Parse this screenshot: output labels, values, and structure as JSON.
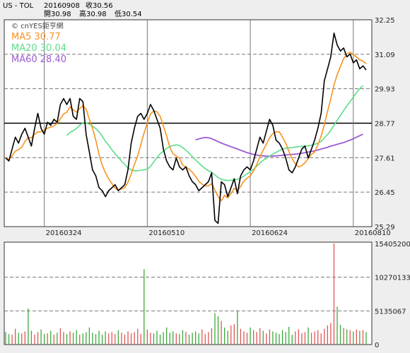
{
  "header": {
    "symbol": "US - TOL",
    "date": "20160908",
    "close_label": "收30.56",
    "open_label": "開30.98",
    "high_label": "高30.98",
    "low_label": "低30.54"
  },
  "watermark": "© cnYES鉅亨網",
  "colors": {
    "price": "#000000",
    "ma5": "#f7931e",
    "ma20": "#5ddc8a",
    "ma60": "#9b5bd3",
    "vol_up": "#e05555",
    "vol_down": "#3aaa3a",
    "vol_flat": "#000000",
    "grid": "#777777",
    "background": "#ffffff"
  },
  "chart_data": [
    {
      "type": "line",
      "title": "US - TOL",
      "legend": [
        {
          "name": "MA5",
          "value": "30.77"
        },
        {
          "name": "MA20",
          "value": "30.04"
        },
        {
          "name": "MA60",
          "value": "28.40"
        }
      ],
      "yticks": [
        "32.25",
        "31.09",
        "29.93",
        "28.77",
        "27.61",
        "26.45",
        "25.29"
      ],
      "ylim": [
        25.29,
        32.25
      ],
      "xticks": [
        {
          "label": "20160324",
          "index": 12
        },
        {
          "label": "20160510",
          "index": 44
        },
        {
          "label": "20160624",
          "index": 76
        },
        {
          "label": "20160810",
          "index": 108
        }
      ],
      "reference_line": 28.77,
      "series": [
        {
          "name": "Price",
          "values": [
            27.6,
            27.5,
            27.9,
            28.3,
            28.1,
            28.4,
            28.6,
            28.3,
            28.0,
            28.6,
            29.1,
            28.6,
            28.4,
            28.8,
            28.7,
            28.9,
            28.8,
            29.4,
            29.6,
            29.4,
            29.6,
            29.0,
            28.9,
            29.6,
            29.5,
            28.4,
            27.8,
            27.2,
            27.0,
            26.6,
            26.5,
            26.3,
            26.5,
            26.6,
            26.7,
            26.5,
            26.6,
            26.7,
            27.2,
            28.1,
            28.6,
            29.0,
            29.1,
            28.9,
            29.1,
            29.4,
            29.2,
            28.9,
            28.6,
            27.9,
            27.5,
            27.3,
            27.2,
            27.6,
            27.3,
            27.2,
            27.3,
            27.0,
            26.8,
            26.7,
            26.5,
            26.6,
            26.7,
            26.8,
            27.1,
            25.5,
            25.4,
            26.8,
            26.7,
            26.3,
            26.6,
            26.9,
            26.4,
            27.0,
            27.2,
            27.3,
            27.2,
            27.5,
            27.9,
            28.3,
            28.1,
            28.5,
            28.9,
            28.7,
            28.2,
            28.1,
            27.9,
            27.6,
            27.2,
            27.1,
            27.3,
            27.6,
            27.9,
            28.0,
            27.6,
            27.9,
            28.2,
            28.6,
            29.1,
            30.2,
            30.6,
            31.0,
            31.8,
            31.4,
            31.2,
            31.3,
            31.0,
            31.1,
            30.8,
            30.9,
            30.6,
            30.7,
            30.56
          ]
        },
        {
          "name": "MA5",
          "values": [
            27.6,
            27.55,
            27.67,
            27.83,
            27.88,
            27.96,
            28.16,
            28.28,
            28.28,
            28.4,
            28.48,
            28.48,
            28.54,
            28.6,
            28.64,
            28.68,
            28.76,
            28.92,
            29.08,
            29.14,
            29.32,
            29.22,
            29.14,
            29.26,
            29.36,
            29.24,
            28.9,
            28.6,
            28.2,
            27.72,
            27.36,
            27.1,
            26.9,
            26.74,
            26.58,
            26.52,
            26.56,
            26.6,
            26.78,
            27.06,
            27.38,
            27.66,
            28.06,
            28.44,
            28.78,
            29.08,
            29.18,
            29.16,
            29.0,
            28.68,
            28.34,
            27.96,
            27.74,
            27.66,
            27.6,
            27.36,
            27.3,
            27.22,
            27.12,
            26.98,
            26.82,
            26.72,
            26.66,
            26.66,
            26.74,
            26.52,
            26.3,
            26.16,
            26.34,
            26.26,
            26.4,
            26.58,
            26.5,
            26.64,
            26.82,
            26.92,
            27.0,
            27.16,
            27.38,
            27.64,
            27.86,
            28.06,
            28.28,
            28.42,
            28.48,
            28.48,
            28.3,
            28.1,
            27.82,
            27.58,
            27.4,
            27.3,
            27.34,
            27.44,
            27.58,
            27.72,
            27.8,
            28.04,
            28.34,
            28.72,
            29.18,
            29.58,
            30.06,
            30.4,
            30.68,
            30.94,
            31.1,
            31.16,
            31.08,
            31.0,
            30.9,
            30.86,
            30.77
          ]
        },
        {
          "name": "MA20",
          "values": [
            null,
            null,
            null,
            null,
            null,
            null,
            null,
            null,
            null,
            null,
            null,
            null,
            null,
            null,
            null,
            null,
            null,
            null,
            null,
            28.36,
            28.46,
            28.52,
            28.59,
            28.7,
            28.79,
            28.78,
            28.74,
            28.67,
            28.59,
            28.48,
            28.33,
            28.16,
            28.03,
            27.88,
            27.74,
            27.62,
            27.5,
            27.38,
            27.27,
            27.2,
            27.17,
            27.17,
            27.19,
            27.2,
            27.22,
            27.32,
            27.46,
            27.61,
            27.74,
            27.83,
            27.92,
            27.98,
            28.02,
            28.04,
            28.02,
            27.95,
            27.86,
            27.76,
            27.64,
            27.53,
            27.43,
            27.33,
            27.24,
            27.17,
            27.12,
            27.03,
            26.94,
            26.88,
            26.86,
            26.84,
            26.85,
            26.87,
            26.88,
            26.93,
            26.99,
            27.07,
            27.14,
            27.22,
            27.32,
            27.43,
            27.52,
            27.59,
            27.66,
            27.73,
            27.79,
            27.85,
            27.9,
            27.93,
            27.94,
            27.95,
            27.97,
            27.98,
            27.99,
            28.0,
            28.01,
            28.03,
            28.06,
            28.1,
            28.16,
            28.27,
            28.39,
            28.53,
            28.7,
            28.87,
            29.03,
            29.2,
            29.35,
            29.5,
            29.65,
            29.8,
            29.93,
            30.04
          ]
        },
        {
          "name": "MA60",
          "values": [
            null,
            null,
            null,
            null,
            null,
            null,
            null,
            null,
            null,
            null,
            null,
            null,
            null,
            null,
            null,
            null,
            null,
            null,
            null,
            null,
            null,
            null,
            null,
            null,
            null,
            null,
            null,
            null,
            null,
            null,
            null,
            null,
            null,
            null,
            null,
            null,
            null,
            null,
            null,
            null,
            null,
            null,
            null,
            null,
            null,
            null,
            null,
            null,
            null,
            null,
            null,
            null,
            null,
            null,
            null,
            null,
            null,
            null,
            null,
            28.21,
            28.24,
            28.27,
            28.29,
            28.28,
            28.25,
            28.2,
            28.15,
            28.1,
            28.06,
            28.02,
            27.98,
            27.94,
            27.9,
            27.86,
            27.82,
            27.78,
            27.75,
            27.72,
            27.7,
            27.68,
            27.67,
            27.66,
            27.66,
            27.66,
            27.67,
            27.68,
            27.69,
            27.7,
            27.71,
            27.72,
            27.73,
            27.74,
            27.76,
            27.78,
            27.8,
            27.82,
            27.84,
            27.87,
            27.9,
            27.93,
            27.96,
            28.0,
            28.03,
            28.06,
            28.09,
            28.12,
            28.16,
            28.2,
            28.25,
            28.3,
            28.35,
            28.4
          ]
        }
      ]
    },
    {
      "type": "bar",
      "title": "",
      "yticks": [
        "15405200",
        "10270133",
        "5135067",
        "0"
      ],
      "ylim": [
        0,
        15405200
      ],
      "series": [
        {
          "name": "Volume",
          "values": [
            1900000,
            1600000,
            1500000,
            2400000,
            1800000,
            1700000,
            2000000,
            5500000,
            2100000,
            1500000,
            1900000,
            2300000,
            1600000,
            1700000,
            2100000,
            1500000,
            1800000,
            2500000,
            1900000,
            1600000,
            2000000,
            1800000,
            2200000,
            1500000,
            1700000,
            1900000,
            2600000,
            1800000,
            1600000,
            2100000,
            1500000,
            2000000,
            1700000,
            1900000,
            1600000,
            2200000,
            1800000,
            1500000,
            2000000,
            1700000,
            1900000,
            2400000,
            1600000,
            11500000,
            2300000,
            1800000,
            1700000,
            2100000,
            1500000,
            1900000,
            2600000,
            1800000,
            2000000,
            1700000,
            1600000,
            2200000,
            1900000,
            1500000,
            1800000,
            2000000,
            1700000,
            2300000,
            1600000,
            1900000,
            2500000,
            4800000,
            4300000,
            3600000,
            2600000,
            2100000,
            2900000,
            3100000,
            5200000,
            2400000,
            2000000,
            1800000,
            2600000,
            2200000,
            1900000,
            2500000,
            2100000,
            1700000,
            2300000,
            2000000,
            1800000,
            1600000,
            2200000,
            1900000,
            2700000,
            1500000,
            2000000,
            2300000,
            1700000,
            1900000,
            2600000,
            1800000,
            2000000,
            2200000,
            1700000,
            2400000,
            2900000,
            3300000,
            15405200,
            5800000,
            3000000,
            2500000,
            2300000,
            2200000,
            2000000,
            2300000,
            2100000,
            2200000,
            1900000
          ]
        },
        {
          "name": "Direction",
          "values": [
            -1,
            -1,
            1,
            1,
            -1,
            1,
            1,
            -1,
            -1,
            1,
            1,
            -1,
            -1,
            1,
            -1,
            1,
            -1,
            1,
            1,
            -1,
            1,
            -1,
            -1,
            1,
            -1,
            -1,
            -1,
            -1,
            -1,
            -1,
            -1,
            -1,
            1,
            1,
            1,
            -1,
            1,
            1,
            1,
            1,
            1,
            1,
            1,
            -1,
            1,
            1,
            -1,
            -1,
            -1,
            -1,
            -1,
            -1,
            -1,
            1,
            -1,
            -1,
            1,
            -1,
            -1,
            -1,
            -1,
            1,
            1,
            1,
            1,
            -1,
            -1,
            1,
            -1,
            -1,
            1,
            1,
            -1,
            1,
            1,
            1,
            -1,
            1,
            1,
            1,
            -1,
            1,
            1,
            -1,
            -1,
            -1,
            -1,
            -1,
            -1,
            -1,
            1,
            1,
            1,
            1,
            -1,
            1,
            1,
            1,
            1,
            1,
            1,
            1,
            1,
            -1,
            -1,
            1,
            -1,
            1,
            -1,
            1,
            -1,
            1,
            -1
          ]
        }
      ]
    }
  ]
}
